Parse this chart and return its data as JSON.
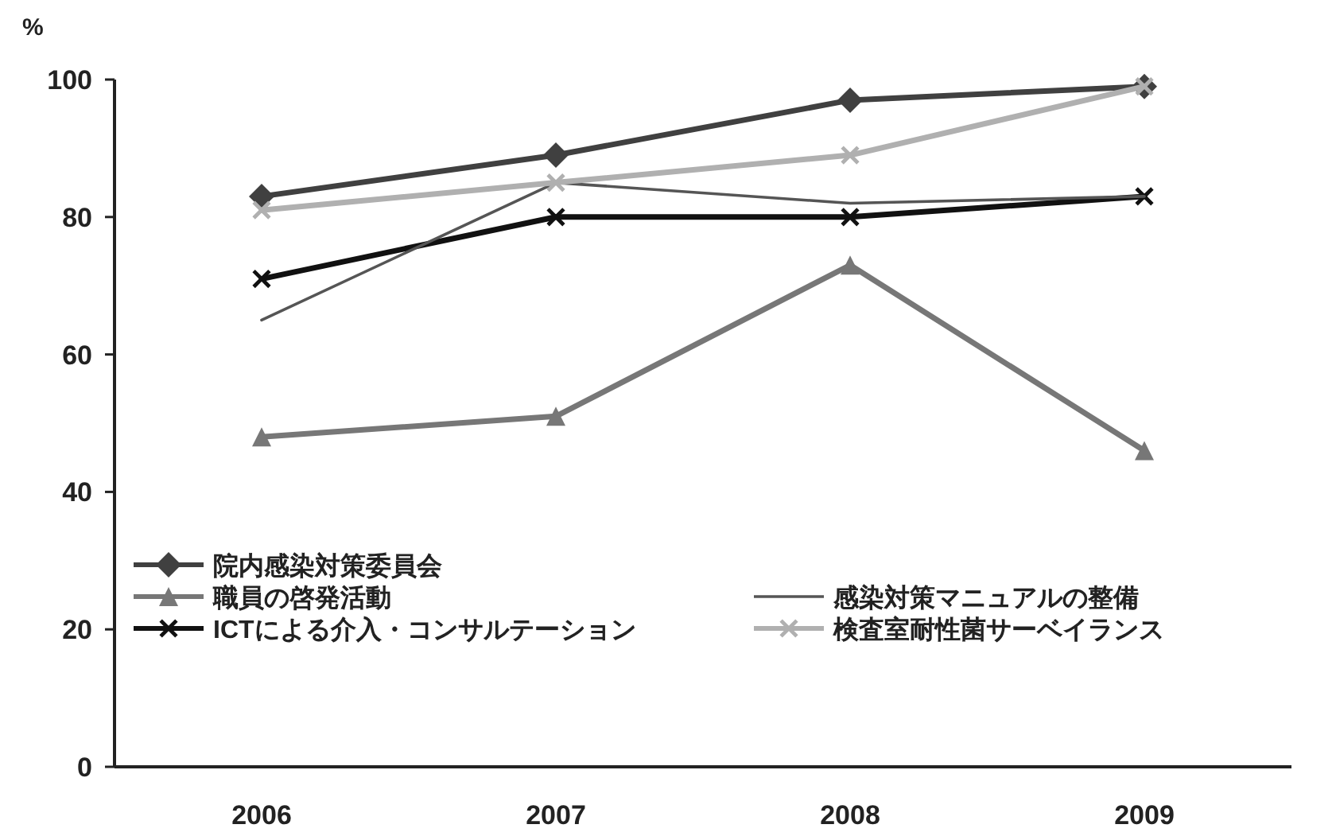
{
  "chart_data": {
    "type": "line",
    "ylabel": "%",
    "categories": [
      "2006",
      "2007",
      "2008",
      "2009"
    ],
    "ylim": [
      0,
      100
    ],
    "yticks": [
      0,
      20,
      40,
      60,
      80,
      100
    ],
    "grid": false,
    "legend": "bottom",
    "series": [
      {
        "name": "院内感染対策委員会",
        "color": "#404040",
        "marker": "diamond",
        "values": [
          83,
          89,
          97,
          99
        ]
      },
      {
        "name": "職員の啓発活動",
        "color": "#777777",
        "marker": "triangle",
        "values": [
          48,
          51,
          73,
          46
        ]
      },
      {
        "name": "ICTによる介入・コンサルテーション",
        "color": "#111111",
        "marker": "cross",
        "values": [
          71,
          80,
          80,
          83
        ]
      },
      {
        "name": "感染対策マニュアルの整備",
        "color": "#555555",
        "marker": "none",
        "values": [
          65,
          85,
          82,
          83
        ]
      },
      {
        "name": "検査室耐性菌サーベイランス",
        "color": "#b0b0b0",
        "marker": "cross",
        "values": [
          81,
          85,
          89,
          99
        ]
      }
    ]
  }
}
